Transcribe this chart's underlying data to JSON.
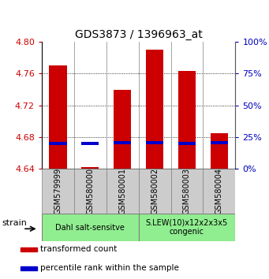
{
  "title": "GDS3873 / 1396963_at",
  "samples": [
    "GSM579999",
    "GSM580000",
    "GSM580001",
    "GSM580002",
    "GSM580003",
    "GSM580004"
  ],
  "transformed_counts": [
    4.77,
    4.642,
    4.74,
    4.79,
    4.763,
    4.685
  ],
  "percentile_values": [
    4.672,
    4.672,
    4.673,
    4.673,
    4.672,
    4.673
  ],
  "ylim_left": [
    4.64,
    4.8
  ],
  "ylim_right": [
    0,
    100
  ],
  "yticks_left": [
    4.64,
    4.68,
    4.72,
    4.76,
    4.8
  ],
  "yticks_right": [
    0,
    25,
    50,
    75,
    100
  ],
  "groups": [
    {
      "label": "Dahl salt-sensitve",
      "xstart": 0,
      "xend": 3,
      "color": "#90ee90"
    },
    {
      "label": "S.LEW(10)x12x2x3x5\ncongenic",
      "xstart": 3,
      "xend": 6,
      "color": "#90ee90"
    }
  ],
  "bar_color": "#cc0000",
  "percentile_color": "#0000cc",
  "bar_width": 0.55,
  "baseline": 4.64,
  "tick_label_color_left": "#cc0000",
  "tick_label_color_right": "#0000bb",
  "legend_items": [
    {
      "color": "#cc0000",
      "label": "transformed count"
    },
    {
      "color": "#0000cc",
      "label": "percentile rank within the sample"
    }
  ],
  "sample_box_color": "#cccccc",
  "grid_yticks": [
    4.68,
    4.72,
    4.76
  ]
}
